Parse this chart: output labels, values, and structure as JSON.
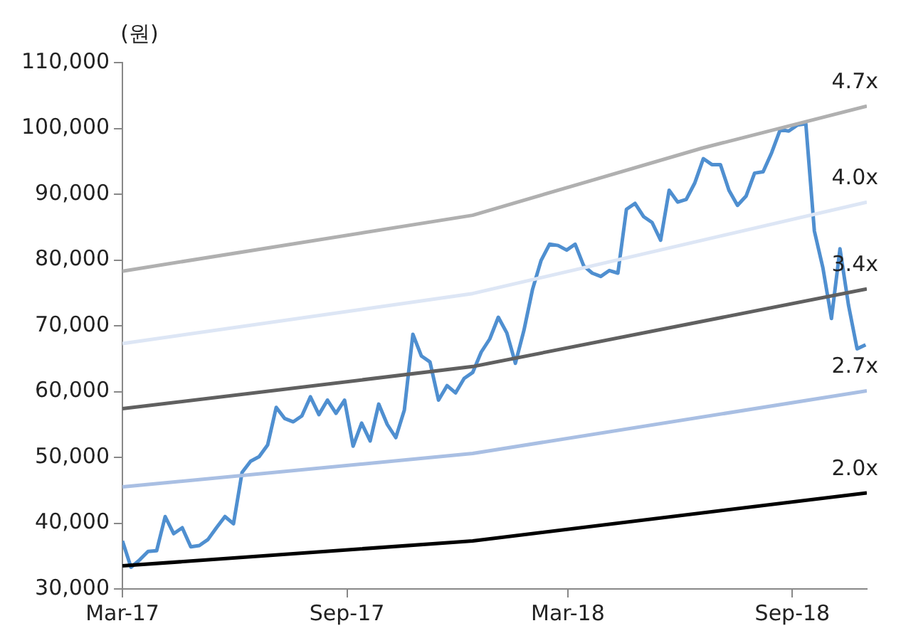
{
  "chart_data": {
    "type": "line",
    "ylabel": "(원)",
    "legend": false,
    "grid": false,
    "marker": "none",
    "line_style": "solid",
    "xlim": [
      "2017-03-01",
      "2018-11-01"
    ],
    "xticks": [
      {
        "value": "2017-03-01",
        "label": "Mar-17"
      },
      {
        "value": "2017-09-01",
        "label": "Sep-17"
      },
      {
        "value": "2018-03-01",
        "label": "Mar-18"
      },
      {
        "value": "2018-09-01",
        "label": "Sep-18"
      }
    ],
    "ylim": [
      30000,
      110000
    ],
    "yticks": [
      {
        "value": 30000,
        "label": "30,000"
      },
      {
        "value": 40000,
        "label": "40,000"
      },
      {
        "value": 50000,
        "label": "50,000"
      },
      {
        "value": 60000,
        "label": "60,000"
      },
      {
        "value": 70000,
        "label": "70,000"
      },
      {
        "value": 80000,
        "label": "80,000"
      },
      {
        "value": 90000,
        "label": "90,000"
      },
      {
        "value": 100000,
        "label": "100,000"
      },
      {
        "value": 110000,
        "label": "110,000"
      }
    ],
    "series": [
      {
        "name": "4.7x",
        "color": "#b0b0b0",
        "x": [
          "2017-03-01",
          "2017-12-13",
          "2018-06-19",
          "2018-11-01"
        ],
        "values": [
          78300,
          86800,
          97000,
          103400
        ]
      },
      {
        "name": "4.0x",
        "color": "#dde6f5",
        "x": [
          "2017-03-01",
          "2017-12-13",
          "2018-11-01"
        ],
        "values": [
          67300,
          74900,
          88800
        ]
      },
      {
        "name": "3.4x",
        "color": "#606060",
        "x": [
          "2017-03-01",
          "2017-12-13",
          "2018-11-01"
        ],
        "values": [
          57400,
          63800,
          75600
        ]
      },
      {
        "name": "2.7x",
        "color": "#a9bfe3",
        "x": [
          "2017-03-01",
          "2017-12-13",
          "2018-11-01"
        ],
        "values": [
          45500,
          50600,
          60100
        ]
      },
      {
        "name": "2.0x",
        "color": "#000000",
        "x": [
          "2017-03-01",
          "2017-12-13",
          "2018-11-01"
        ],
        "values": [
          33500,
          37300,
          44600
        ]
      },
      {
        "color": "#4f8fd0",
        "x": [
          "2017-03-01",
          "2017-03-08",
          "2017-03-15",
          "2017-03-22",
          "2017-03-29",
          "2017-04-05",
          "2017-04-12",
          "2017-04-19",
          "2017-04-26",
          "2017-05-03",
          "2017-05-10",
          "2017-05-17",
          "2017-05-24",
          "2017-05-31",
          "2017-06-07",
          "2017-06-14",
          "2017-06-21",
          "2017-06-28",
          "2017-07-05",
          "2017-07-12",
          "2017-07-19",
          "2017-07-26",
          "2017-08-02",
          "2017-08-09",
          "2017-08-16",
          "2017-08-23",
          "2017-08-30",
          "2017-09-06",
          "2017-09-13",
          "2017-09-20",
          "2017-09-27",
          "2017-10-04",
          "2017-10-11",
          "2017-10-18",
          "2017-10-25",
          "2017-11-01",
          "2017-11-08",
          "2017-11-15",
          "2017-11-22",
          "2017-11-29",
          "2017-12-06",
          "2017-12-13",
          "2017-12-20",
          "2017-12-27",
          "2018-01-03",
          "2018-01-10",
          "2018-01-17",
          "2018-01-24",
          "2018-01-31",
          "2018-02-07",
          "2018-02-14",
          "2018-02-21",
          "2018-02-28",
          "2018-03-07",
          "2018-03-14",
          "2018-03-21",
          "2018-03-28",
          "2018-04-04",
          "2018-04-11",
          "2018-04-18",
          "2018-04-25",
          "2018-05-02",
          "2018-05-09",
          "2018-05-16",
          "2018-05-23",
          "2018-05-30",
          "2018-06-06",
          "2018-06-13",
          "2018-06-20",
          "2018-06-27",
          "2018-07-04",
          "2018-07-11",
          "2018-07-18",
          "2018-07-25",
          "2018-08-01",
          "2018-08-08",
          "2018-08-15",
          "2018-08-22",
          "2018-08-29",
          "2018-09-05",
          "2018-09-12",
          "2018-09-19",
          "2018-09-26",
          "2018-10-03",
          "2018-10-10",
          "2018-10-17",
          "2018-10-24",
          "2018-10-31"
        ],
        "values": [
          37300,
          33300,
          34400,
          35700,
          35800,
          41000,
          38400,
          39300,
          36400,
          36600,
          37500,
          39300,
          41000,
          39900,
          47700,
          49400,
          50100,
          51900,
          57600,
          55900,
          55400,
          56300,
          59200,
          56500,
          58700,
          56700,
          58700,
          51700,
          55200,
          52500,
          58100,
          55000,
          53000,
          57200,
          68700,
          65400,
          64500,
          58700,
          60900,
          59800,
          62000,
          62900,
          66000,
          68000,
          71300,
          68900,
          64300,
          69300,
          75500,
          79900,
          82400,
          82200,
          81500,
          82400,
          79100,
          78000,
          77500,
          78400,
          78000,
          87700,
          88600,
          86600,
          85700,
          83000,
          90600,
          88800,
          89200,
          91700,
          95400,
          94500,
          94500,
          90600,
          88300,
          89700,
          93200,
          93400,
          96300,
          99800,
          99600,
          100500,
          100700,
          84400,
          78800,
          71100,
          81700,
          73100,
          66500,
          67100
        ]
      }
    ]
  }
}
